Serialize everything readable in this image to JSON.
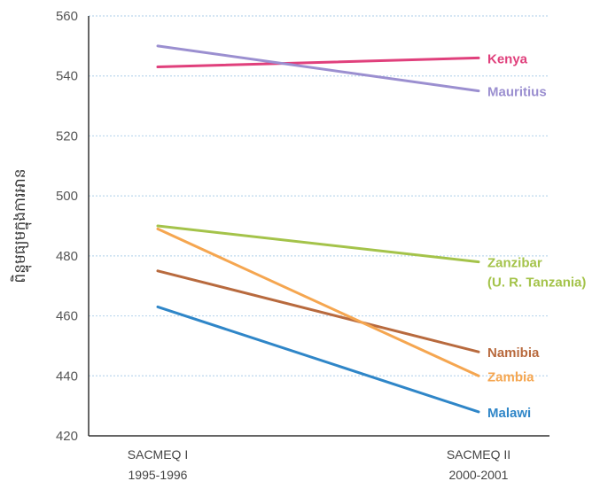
{
  "chart_data": {
    "type": "line",
    "title": "",
    "ylabel": "ពិន្ទុមធ្យមក្នុងការអាន",
    "xlabel": "",
    "x_categories": [
      {
        "line1": "SACMEQ I",
        "line2": "1995-1996"
      },
      {
        "line1": "SACMEQ II",
        "line2": "2000-2001"
      }
    ],
    "ylim": [
      420,
      560
    ],
    "y_ticks": [
      420,
      440,
      460,
      480,
      500,
      520,
      540,
      560
    ],
    "grid": true,
    "legend": "direct-labels-right",
    "series": [
      {
        "name": "Kenya",
        "values": [
          543,
          546
        ],
        "color": "#e0407c"
      },
      {
        "name": "Mauritius",
        "values": [
          550,
          535
        ],
        "color": "#9b8fd0"
      },
      {
        "name": "Zanzibar (U. R. Tanzania)",
        "label_lines": [
          "Zanzibar",
          "(U. R. Tanzania)"
        ],
        "values": [
          490,
          478
        ],
        "color": "#a4c34a"
      },
      {
        "name": "Namibia",
        "values": [
          475,
          448
        ],
        "color": "#b86a3e"
      },
      {
        "name": "Zambia",
        "values": [
          489,
          440
        ],
        "color": "#f5a650"
      },
      {
        "name": "Malawi",
        "values": [
          463,
          428
        ],
        "color": "#2f86c8"
      }
    ]
  }
}
